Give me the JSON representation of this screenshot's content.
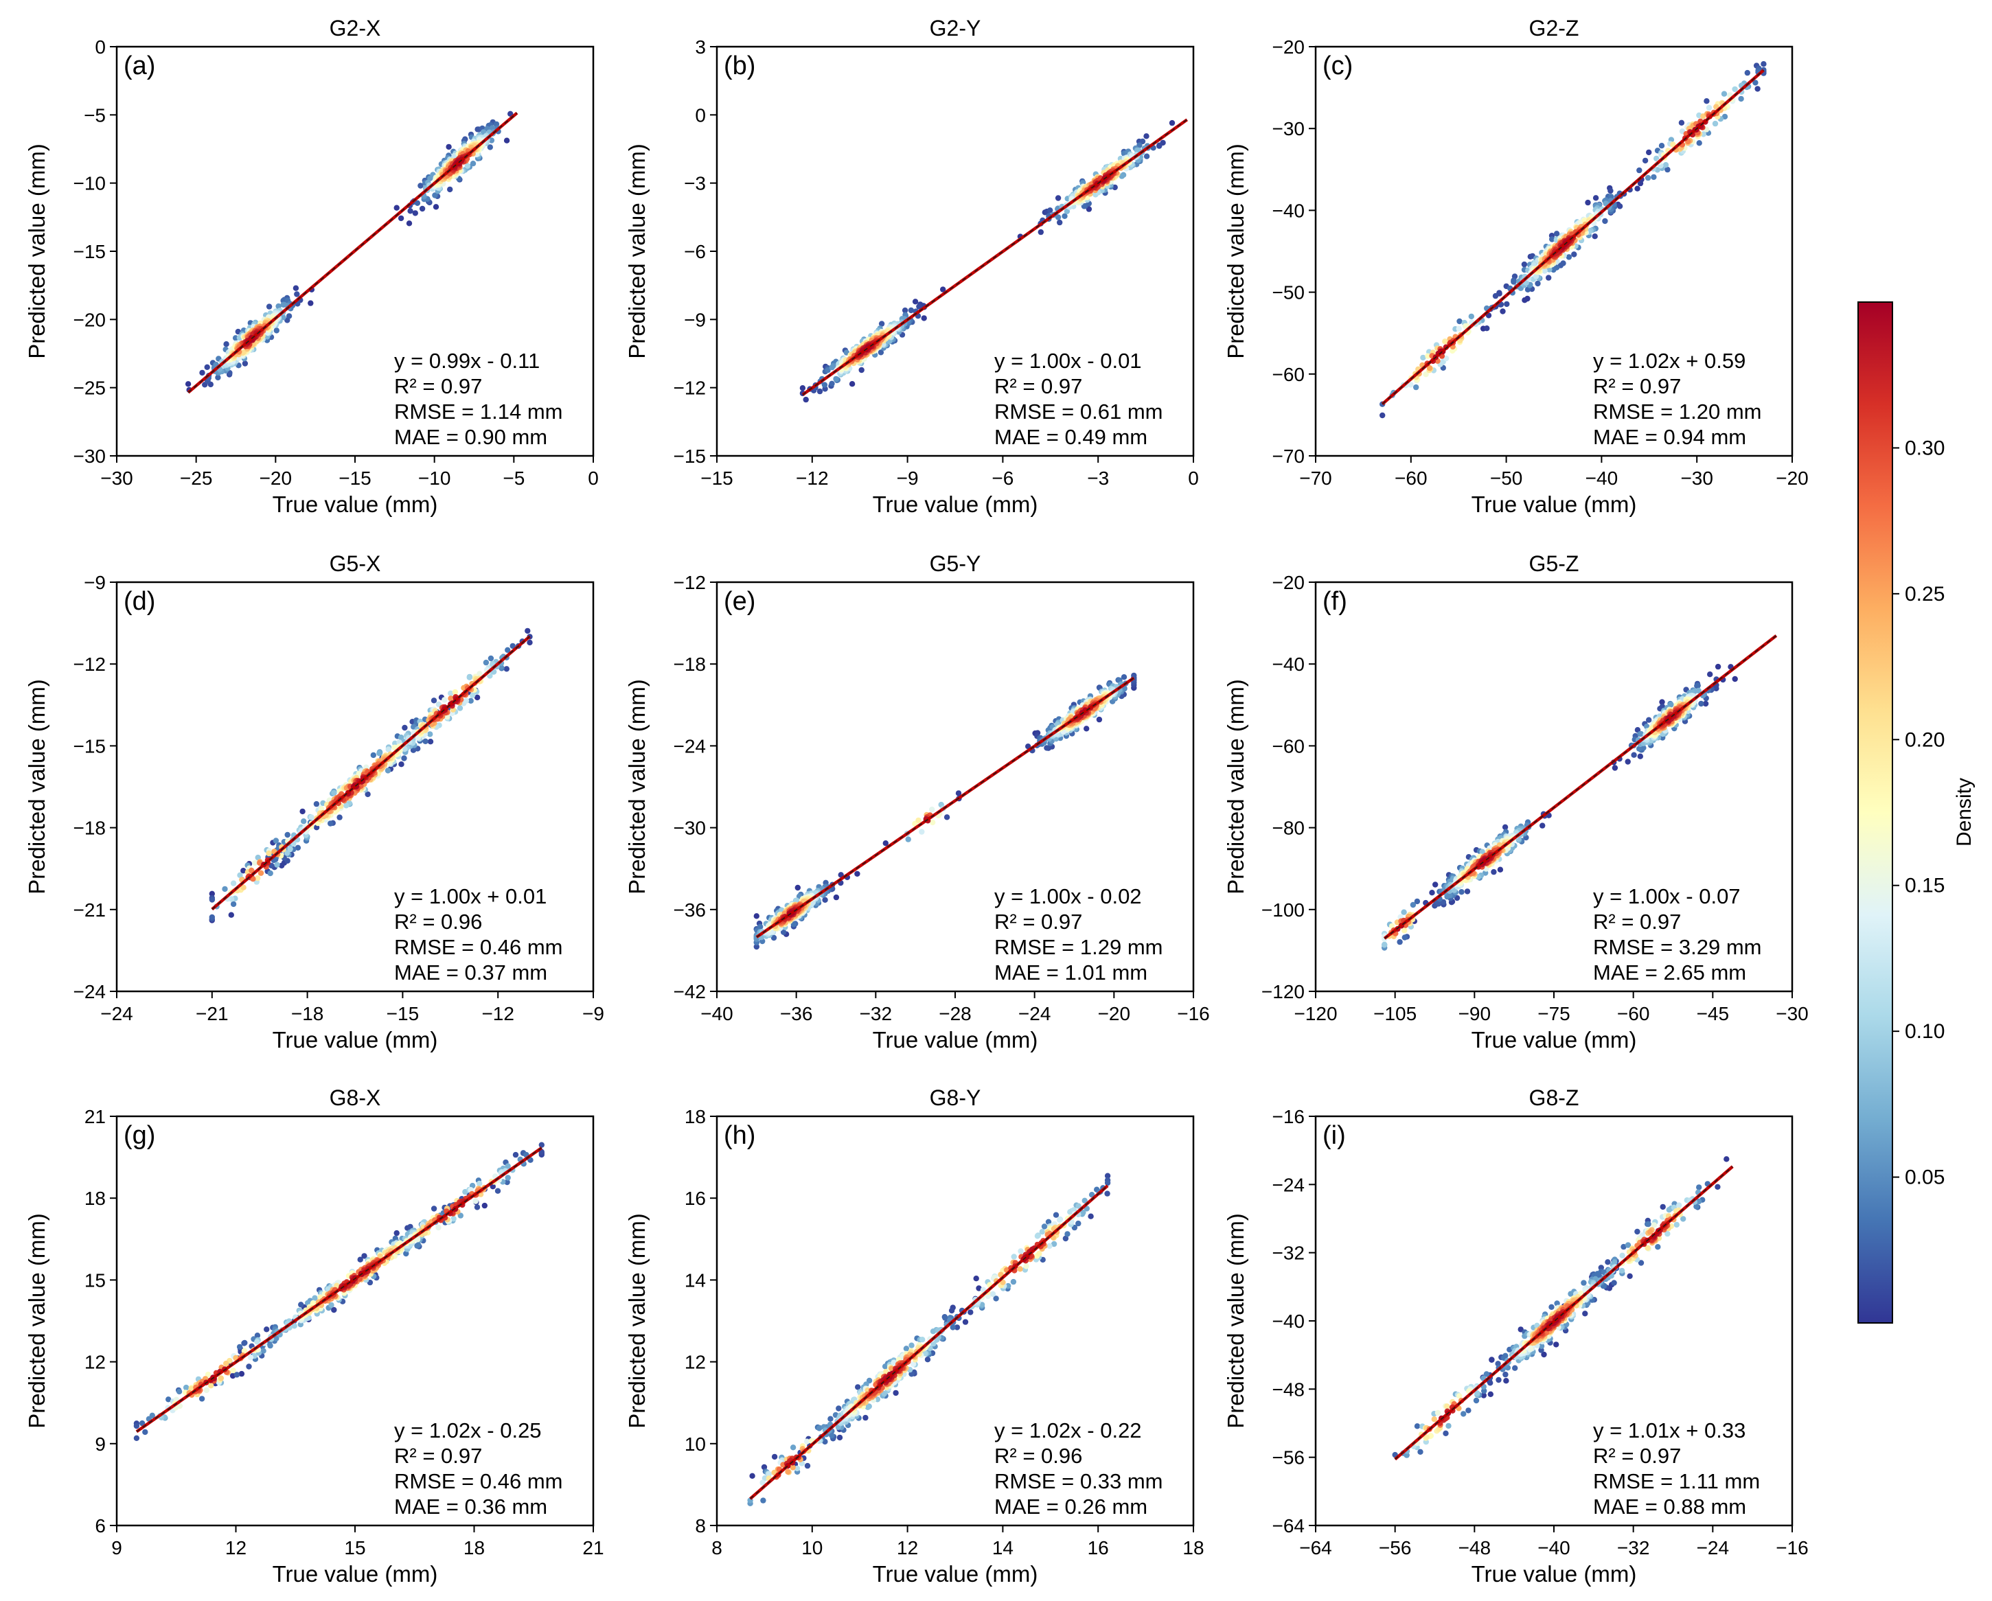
{
  "figure": {
    "xlabel": "True value (mm)",
    "ylabel": "Predicted value (mm)",
    "colorbar": {
      "label": "Density",
      "ticks": [
        0.05,
        0.1,
        0.15,
        0.2,
        0.25,
        0.3
      ],
      "tick_labels": [
        "0.05",
        "0.10",
        "0.15",
        "0.20",
        "0.25",
        "0.30"
      ],
      "range": [
        0.0,
        0.35
      ],
      "colors": [
        "#313695",
        "#4575b4",
        "#74add1",
        "#abd9e9",
        "#e0f3f8",
        "#ffffbf",
        "#fee090",
        "#fdae61",
        "#f46d43",
        "#d73027",
        "#a50026"
      ]
    },
    "fit_line_color": "#c00000"
  },
  "chart_data": [
    {
      "type": "scatter",
      "title": "G2-X",
      "panel_label": "(a)",
      "xlabel": "True value (mm)",
      "ylabel": "Predicted value (mm)",
      "xlim": [
        -30,
        0
      ],
      "ylim": [
        -30,
        0
      ],
      "xticks": [
        -30,
        -25,
        -20,
        -15,
        -10,
        -5,
        0
      ],
      "yticks": [
        -30,
        -25,
        -20,
        -15,
        -10,
        -5,
        0
      ],
      "clusters": [
        {
          "center": -21.5,
          "spread": 1.6,
          "n": 260
        },
        {
          "center": -8.5,
          "spread": 1.6,
          "n": 260
        }
      ],
      "data_range": [
        -25.5,
        -4.8
      ],
      "fit": {
        "slope": 0.99,
        "intercept": -0.11
      },
      "stats": [
        "y = 0.99x - 0.11",
        "R² = 0.97",
        "RMSE = 1.14 mm",
        "MAE = 0.90 mm"
      ]
    },
    {
      "type": "scatter",
      "title": "G2-Y",
      "panel_label": "(b)",
      "xlabel": "True value (mm)",
      "ylabel": "Predicted value (mm)",
      "xlim": [
        -15,
        0
      ],
      "ylim": [
        -15,
        3
      ],
      "xticks": [
        -15,
        -12,
        -9,
        -6,
        -3,
        0
      ],
      "yticks": [
        -15,
        -12,
        -9,
        -6,
        -3,
        0,
        3
      ],
      "clusters": [
        {
          "center": -10.3,
          "spread": 0.9,
          "n": 280
        },
        {
          "center": -2.9,
          "spread": 1.0,
          "n": 220
        }
      ],
      "data_range": [
        -12.3,
        -0.2
      ],
      "fit": {
        "slope": 1.0,
        "intercept": -0.01
      },
      "stats": [
        "y = 1.00x - 0.01",
        "R² = 0.97",
        "RMSE = 0.61 mm",
        "MAE = 0.49 mm"
      ]
    },
    {
      "type": "scatter",
      "title": "G2-Z",
      "panel_label": "(c)",
      "xlabel": "True value (mm)",
      "ylabel": "Predicted value (mm)",
      "xlim": [
        -70,
        -20
      ],
      "ylim": [
        -70,
        -20
      ],
      "xticks": [
        -70,
        -60,
        -50,
        -40,
        -30,
        -20
      ],
      "yticks": [
        -70,
        -60,
        -50,
        -40,
        -30,
        -20
      ],
      "clusters": [
        {
          "center": -44.0,
          "spread": 3.5,
          "n": 300
        },
        {
          "center": -30.0,
          "spread": 4.0,
          "n": 120
        },
        {
          "center": -57.0,
          "spread": 3.5,
          "n": 80
        }
      ],
      "data_range": [
        -63.0,
        -23.0
      ],
      "fit": {
        "slope": 1.02,
        "intercept": 0.59
      },
      "stats": [
        "y = 1.02x + 0.59",
        "R² = 0.97",
        "RMSE = 1.20 mm",
        "MAE = 0.94 mm"
      ]
    },
    {
      "type": "scatter",
      "title": "G5-X",
      "panel_label": "(d)",
      "xlabel": "True value (mm)",
      "ylabel": "Predicted value (mm)",
      "xlim": [
        -24,
        -9
      ],
      "ylim": [
        -24,
        -9
      ],
      "xticks": [
        -24,
        -21,
        -18,
        -15,
        -12,
        -9
      ],
      "yticks": [
        -24,
        -21,
        -18,
        -15,
        -12,
        -9
      ],
      "clusters": [
        {
          "center": -16.5,
          "spread": 1.6,
          "n": 300
        },
        {
          "center": -13.5,
          "spread": 1.2,
          "n": 150
        },
        {
          "center": -19.5,
          "spread": 1.0,
          "n": 60
        }
      ],
      "data_range": [
        -21.0,
        -11.0
      ],
      "fit": {
        "slope": 1.0,
        "intercept": 0.01
      },
      "stats": [
        "y = 1.00x + 0.01",
        "R² = 0.96",
        "RMSE = 0.46 mm",
        "MAE = 0.37 mm"
      ]
    },
    {
      "type": "scatter",
      "title": "G5-Y",
      "panel_label": "(e)",
      "xlabel": "True value (mm)",
      "ylabel": "Predicted value (mm)",
      "xlim": [
        -40,
        -16
      ],
      "ylim": [
        -42,
        -12
      ],
      "xticks": [
        -40,
        -36,
        -32,
        -28,
        -24,
        -20,
        -16
      ],
      "yticks": [
        -42,
        -36,
        -30,
        -24,
        -18,
        -12
      ],
      "clusters": [
        {
          "center": -36.3,
          "spread": 1.2,
          "n": 260
        },
        {
          "center": -21.5,
          "spread": 1.4,
          "n": 280
        },
        {
          "center": -29.5,
          "spread": 0.8,
          "n": 20
        }
      ],
      "data_range": [
        -38.0,
        -19.0
      ],
      "fit": {
        "slope": 1.0,
        "intercept": -0.02
      },
      "stats": [
        "y = 1.00x - 0.02",
        "R² = 0.97",
        "RMSE = 1.29 mm",
        "MAE = 1.01 mm"
      ]
    },
    {
      "type": "scatter",
      "title": "G5-Z",
      "panel_label": "(f)",
      "xlabel": "True value (mm)",
      "ylabel": "Predicted value (mm)",
      "xlim": [
        -120,
        -30
      ],
      "ylim": [
        -120,
        -20
      ],
      "xticks": [
        -120,
        -105,
        -90,
        -75,
        -60,
        -45,
        -30
      ],
      "yticks": [
        -120,
        -100,
        -80,
        -60,
        -40,
        -20
      ],
      "clusters": [
        {
          "center": -88.0,
          "spread": 5.5,
          "n": 260
        },
        {
          "center": -53.0,
          "spread": 4.5,
          "n": 260
        },
        {
          "center": -104.0,
          "spread": 3.0,
          "n": 40
        }
      ],
      "data_range": [
        -107.0,
        -33.0
      ],
      "fit": {
        "slope": 1.0,
        "intercept": -0.07
      },
      "stats": [
        "y = 1.00x - 0.07",
        "R² = 0.97",
        "RMSE = 3.29 mm",
        "MAE = 2.65 mm"
      ]
    },
    {
      "type": "scatter",
      "title": "G8-X",
      "panel_label": "(g)",
      "xlabel": "True value (mm)",
      "ylabel": "Predicted value (mm)",
      "xlim": [
        9,
        21
      ],
      "ylim": [
        6,
        21
      ],
      "xticks": [
        9,
        12,
        15,
        18,
        21
      ],
      "yticks": [
        6,
        9,
        12,
        15,
        18,
        21
      ],
      "clusters": [
        {
          "center": 15.0,
          "spread": 1.5,
          "n": 300
        },
        {
          "center": 17.5,
          "spread": 1.2,
          "n": 120
        },
        {
          "center": 11.5,
          "spread": 1.2,
          "n": 100
        }
      ],
      "data_range": [
        9.5,
        19.7
      ],
      "fit": {
        "slope": 1.02,
        "intercept": -0.25
      },
      "stats": [
        "y = 1.02x - 0.25",
        "R² = 0.97",
        "RMSE = 0.46 mm",
        "MAE = 0.36 mm"
      ]
    },
    {
      "type": "scatter",
      "title": "G8-Y",
      "panel_label": "(h)",
      "xlabel": "True value (mm)",
      "ylabel": "Predicted value (mm)",
      "xlim": [
        8,
        18
      ],
      "ylim": [
        8,
        18
      ],
      "xticks": [
        8,
        10,
        12,
        14,
        16,
        18
      ],
      "yticks": [
        8,
        10,
        12,
        14,
        16,
        18
      ],
      "clusters": [
        {
          "center": 11.6,
          "spread": 0.9,
          "n": 300
        },
        {
          "center": 14.5,
          "spread": 1.0,
          "n": 140
        },
        {
          "center": 9.5,
          "spread": 0.6,
          "n": 60
        }
      ],
      "data_range": [
        8.7,
        16.2
      ],
      "fit": {
        "slope": 1.02,
        "intercept": -0.22
      },
      "stats": [
        "y = 1.02x - 0.22",
        "R² = 0.96",
        "RMSE = 0.33 mm",
        "MAE = 0.26 mm"
      ]
    },
    {
      "type": "scatter",
      "title": "G8-Z",
      "panel_label": "(i)",
      "xlabel": "True value (mm)",
      "ylabel": "Predicted value (mm)",
      "xlim": [
        -64,
        -16
      ],
      "ylim": [
        -64,
        -16
      ],
      "xticks": [
        -64,
        -56,
        -48,
        -40,
        -32,
        -24,
        -16
      ],
      "yticks": [
        -64,
        -56,
        -48,
        -40,
        -32,
        -24,
        -16
      ],
      "clusters": [
        {
          "center": -40.0,
          "spread": 3.5,
          "n": 300
        },
        {
          "center": -30.0,
          "spread": 3.5,
          "n": 130
        },
        {
          "center": -51.0,
          "spread": 3.0,
          "n": 70
        }
      ],
      "data_range": [
        -56.0,
        -22.0
      ],
      "fit": {
        "slope": 1.01,
        "intercept": 0.33
      },
      "stats": [
        "y = 1.01x + 0.33",
        "R² = 0.97",
        "RMSE = 1.11 mm",
        "MAE = 0.88 mm"
      ]
    }
  ]
}
